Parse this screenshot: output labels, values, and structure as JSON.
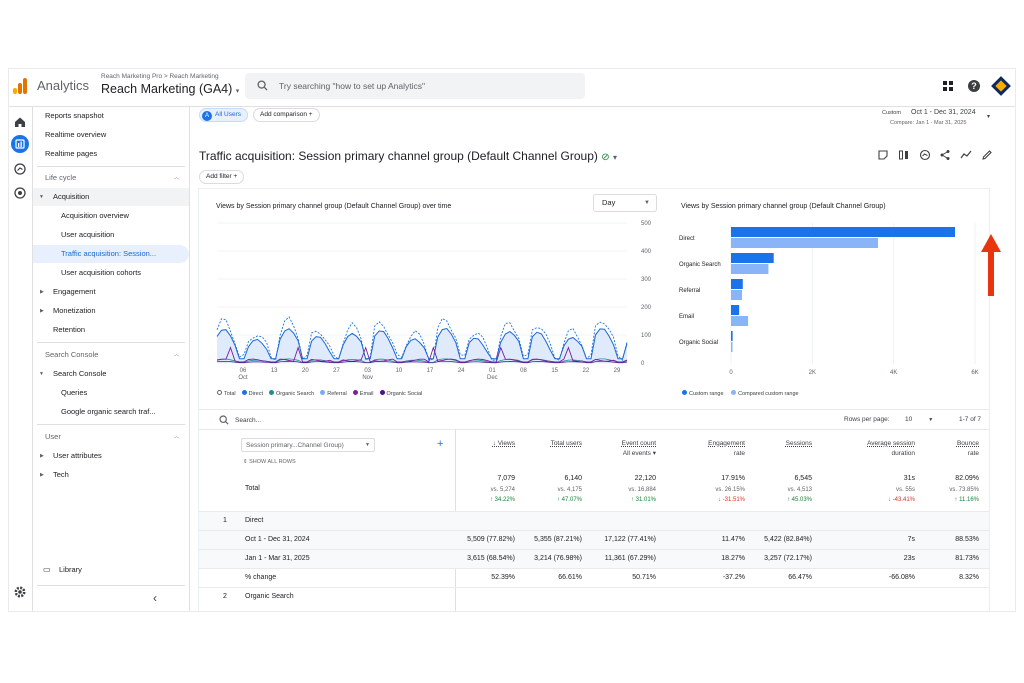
{
  "header": {
    "app_name": "Analytics",
    "breadcrumb": "Reach Marketing Pro > Reach Marketing",
    "property": "Reach Marketing (GA4)",
    "search_placeholder": "Try searching \"how to set up Analytics\""
  },
  "sidebar": {
    "top_items": [
      "Reports snapshot",
      "Realtime overview",
      "Realtime pages"
    ],
    "lifecycle_header": "Life cycle",
    "acquisition": "Acquisition",
    "acq_items": [
      "Acquisition overview",
      "User acquisition",
      "Traffic acquisition: Session...",
      "User acquisition cohorts"
    ],
    "engagement": "Engagement",
    "monetization": "Monetization",
    "retention": "Retention",
    "search_console_header": "Search Console",
    "search_console": "Search Console",
    "sc_items": [
      "Queries",
      "Google organic search traf..."
    ],
    "user_header": "User",
    "user_attributes": "User attributes",
    "tech": "Tech",
    "library": "Library"
  },
  "toolbar": {
    "segment_badge": "A",
    "segment": "All Users",
    "add_comparison": "Add comparison",
    "add_filter": "Add filter",
    "date_label": "Custom",
    "date_range": "Oct 1 - Dec 31, 2024",
    "compare_range": "Compare: Jan 1 - Mar 31, 2025"
  },
  "report": {
    "title": "Traffic acquisition: Session primary channel group (Default Channel Group)"
  },
  "line_chart": {
    "title": "Views by Session primary channel group (Default Channel Group) over time",
    "granularity": "Day",
    "y_ticks": [
      "500",
      "400",
      "300",
      "200",
      "100",
      "0"
    ],
    "x_ticks": [
      {
        "d": "06",
        "m": "Oct"
      },
      {
        "d": "13",
        "m": ""
      },
      {
        "d": "20",
        "m": ""
      },
      {
        "d": "27",
        "m": ""
      },
      {
        "d": "03",
        "m": "Nov"
      },
      {
        "d": "10",
        "m": ""
      },
      {
        "d": "17",
        "m": ""
      },
      {
        "d": "24",
        "m": ""
      },
      {
        "d": "01",
        "m": "Dec"
      },
      {
        "d": "08",
        "m": ""
      },
      {
        "d": "15",
        "m": ""
      },
      {
        "d": "22",
        "m": ""
      },
      {
        "d": "29",
        "m": ""
      }
    ],
    "legend": [
      {
        "name": "Total",
        "color": "#ffffff",
        "border": "#5f6368"
      },
      {
        "name": "Direct",
        "color": "#1a73e8"
      },
      {
        "name": "Organic Search",
        "color": "#1e8e8e"
      },
      {
        "name": "Referral",
        "color": "#7baaf7"
      },
      {
        "name": "Email",
        "color": "#7b1fa2"
      },
      {
        "name": "Organic Social",
        "color": "#4a148c"
      }
    ]
  },
  "bar_chart": {
    "title": "Views by Session primary channel group (Default Channel Group)",
    "categories": [
      "Direct",
      "Organic Search",
      "Referral",
      "Email",
      "Organic Social"
    ],
    "current": [
      5509,
      1050,
      290,
      200,
      40
    ],
    "compare": [
      3615,
      920,
      270,
      420,
      30
    ],
    "x_ticks": [
      "0",
      "2K",
      "4K",
      "6K"
    ],
    "x_max": 6000,
    "legend_current": "Custom range",
    "legend_compare": "Compared custom range",
    "color_current": "#1a73e8",
    "color_compare": "#8ab4f8"
  },
  "table": {
    "search": "Search...",
    "rows_per_page_label": "Rows per page:",
    "rows_per_page": "10",
    "pagination": "1-7 of 7",
    "dim_select": "Session primary...Channel Group)",
    "show_all_rows": "SHOW ALL ROWS",
    "total_label": "Total",
    "columns": [
      {
        "l1": "↓ Views",
        "l2": ""
      },
      {
        "l1": "Total users",
        "l2": ""
      },
      {
        "l1": "Event count",
        "l2": "All events ▾"
      },
      {
        "l1": "Engagement",
        "l2": "rate"
      },
      {
        "l1": "Sessions",
        "l2": ""
      },
      {
        "l1": "Average session",
        "l2": "duration"
      },
      {
        "l1": "Bounce",
        "l2": "rate"
      }
    ],
    "totals": [
      "7,079",
      "6,140",
      "22,120",
      "17.91%",
      "6,545",
      "31s",
      "82.09%"
    ],
    "totals_vs": [
      "vs. 5,274",
      "vs. 4,175",
      "vs. 16,884",
      "vs. 26.15%",
      "vs. 4,513",
      "vs. 55s",
      "vs. 73.85%"
    ],
    "totals_change": [
      {
        "t": "↑ 34.22%",
        "dir": "up"
      },
      {
        "t": "↑ 47.07%",
        "dir": "up"
      },
      {
        "t": "↑ 31.01%",
        "dir": "up"
      },
      {
        "t": "↓ -31.51%",
        "dir": "down"
      },
      {
        "t": "↑ 45.03%",
        "dir": "up"
      },
      {
        "t": "↓ -43.41%",
        "dir": "down"
      },
      {
        "t": "↑ 11.16%",
        "dir": "up"
      }
    ],
    "group1": {
      "num": "1",
      "name": "Direct"
    },
    "rows": [
      {
        "label": "Oct 1 - Dec 31, 2024",
        "v": [
          "5,509 (77.82%)",
          "5,355 (87.21%)",
          "17,122 (77.41%)",
          "11.47%",
          "5,422 (82.84%)",
          "7s",
          "88.53%"
        ]
      },
      {
        "label": "Jan 1 - Mar 31, 2025",
        "v": [
          "3,615 (68.54%)",
          "3,214 (76.98%)",
          "11,361 (67.29%)",
          "18.27%",
          "3,257 (72.17%)",
          "23s",
          "81.73%"
        ]
      },
      {
        "label": "% change",
        "v": [
          "52.39%",
          "66.61%",
          "50.71%",
          "-37.2%",
          "66.47%",
          "-66.08%",
          "8.32%"
        ]
      }
    ],
    "group2": {
      "num": "2",
      "name": "Organic Search"
    }
  }
}
